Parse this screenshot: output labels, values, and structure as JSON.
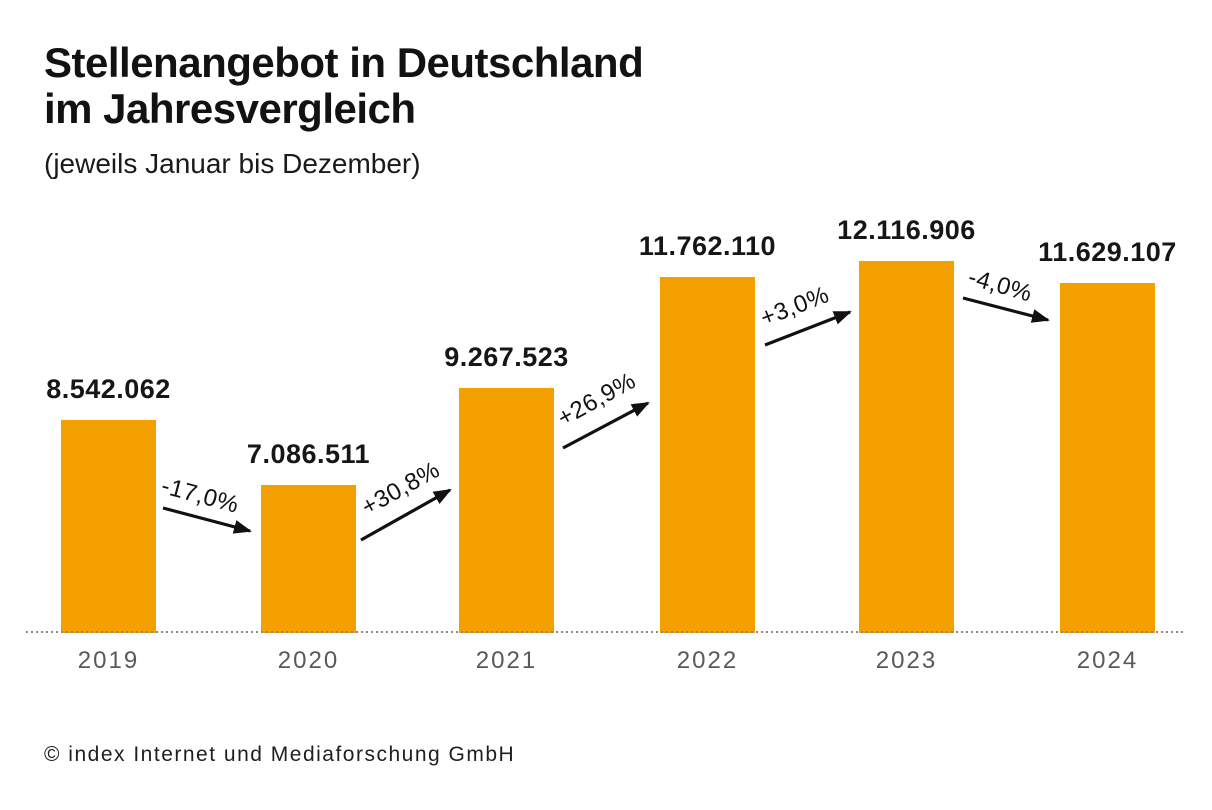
{
  "header": {
    "title_line1": "Stellenangebot in Deutschland",
    "title_line2": "im Jahresvergleich",
    "subtitle": "(jeweils Januar bis Dezember)"
  },
  "footer": {
    "copyright": "© index Internet und Mediaforschung GmbH"
  },
  "colors": {
    "bar": "#F4A000",
    "title_text": "#121212",
    "value_label_text": "#161616",
    "year_label_text": "#58595B",
    "arrow": "#111111",
    "baseline_dots": "#8a8a8a",
    "background": "#ffffff"
  },
  "chart_data": {
    "type": "bar",
    "title": "Stellenangebot in Deutschland im Jahresvergleich",
    "subtitle": "(jeweils Januar bis Dezember)",
    "categories": [
      "2019",
      "2020",
      "2021",
      "2022",
      "2023",
      "2024"
    ],
    "values": [
      8542062,
      7086511,
      9267523,
      11762110,
      12116906,
      11629107
    ],
    "value_labels": [
      "8.542.062",
      "7.086.511",
      "9.267.523",
      "11.762.110",
      "12.116.906",
      "11.629.107"
    ],
    "changes": [
      "-17,0%",
      "+30,8%",
      "+26,9%",
      "+3,0%",
      "-4,0%"
    ],
    "changes_pct": [
      -17.0,
      30.8,
      26.9,
      3.0,
      -4.0
    ],
    "xlabel": "",
    "ylabel": "",
    "ylim": [
      3750000,
      12300000
    ],
    "grid": false,
    "legend": "none",
    "baseline_style": "dotted"
  }
}
